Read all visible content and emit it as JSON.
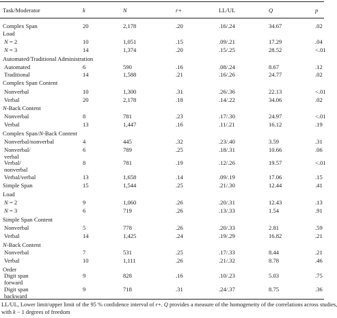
{
  "table": {
    "headers": [
      "Task/Moderator",
      "k",
      "N",
      "r+",
      "LL/UL",
      "Q",
      "p"
    ],
    "rows": [
      {
        "label": "Complex Span",
        "k": "20",
        "N": "2,178",
        "r": ".20",
        "llul": ".16/.24",
        "q": "34.67",
        "p": ".02",
        "type": "data"
      },
      {
        "label": "Load",
        "type": "section"
      },
      {
        "label": "N = 2",
        "k": "10",
        "N": "1,051",
        "r": ".15",
        "llul": ".09/.21",
        "q": "17.29",
        "p": ".04",
        "type": "data"
      },
      {
        "label": "N = 3",
        "k": "14",
        "N": "1,374",
        "r": ".20",
        "llul": ".15/.25",
        "q": "28.52",
        "p": "<.01",
        "type": "data"
      },
      {
        "label": "Automated/Traditional Administration",
        "type": "section"
      },
      {
        "label": "Automated",
        "k": "6",
        "N": "590",
        "r": ".16",
        "llul": ".08/.24",
        "q": "8.67",
        "p": ".12",
        "type": "data"
      },
      {
        "label": "Traditional",
        "k": "14",
        "N": "1,588",
        "r": ".21",
        "llul": ".16/.26",
        "q": "24.77",
        "p": ".02",
        "type": "data"
      },
      {
        "label": "Complex Span Content",
        "type": "section"
      },
      {
        "label": "Nonverbal",
        "k": "10",
        "N": "1,300",
        "r": ".31",
        "llul": ".26/.36",
        "q": "22.13",
        "p": "<.01",
        "type": "data"
      },
      {
        "label": "Verbal",
        "k": "20",
        "N": "2,178",
        "r": ".18",
        "llul": ".14/.22",
        "q": "34.06",
        "p": ".02",
        "type": "data"
      },
      {
        "label": "N-Back Content",
        "type": "section"
      },
      {
        "label": "Nonverbal",
        "k": "8",
        "N": "781",
        "r": ".23",
        "llul": ".17/.30",
        "q": "24.97",
        "p": "<.01",
        "type": "data"
      },
      {
        "label": "Verbal",
        "k": "13",
        "N": "1,447",
        "r": ".16",
        "llul": ".11/.21",
        "q": "16.12",
        "p": ".19",
        "type": "data"
      },
      {
        "label": "Complex Span/N-Back Content",
        "type": "section"
      },
      {
        "label": "Nonverbal/nonverbal",
        "k": "4",
        "N": "445",
        "r": ".32",
        "llul": ".23/.40",
        "q": "3.59",
        "p": ".31",
        "type": "data"
      },
      {
        "label": "Nonverbal/",
        "label2": "verbal",
        "k": "6",
        "N": "789",
        "r": ".25",
        "llul": ".18/.31",
        "q": "10.66",
        "p": ".06",
        "type": "data2"
      },
      {
        "label": "Verbal/",
        "label2": "nonverbal",
        "k": "8",
        "N": "781",
        "r": ".19",
        "llul": ".12/.26",
        "q": "19.57",
        "p": "<.01",
        "type": "data2"
      },
      {
        "label": "Verbal/verbal",
        "k": "13",
        "N": "1,658",
        "k2": "",
        "r": ".14",
        "llul": ".09/.19",
        "q": "17.06",
        "p": ".15",
        "type": "data"
      },
      {
        "label": "Simple Span",
        "k": "15",
        "N": "1,544",
        "r": ".25",
        "llul": ".21/.30",
        "q": "12.44",
        "p": ".41",
        "type": "data"
      },
      {
        "label": "Load",
        "type": "section"
      },
      {
        "label": "N = 2",
        "k": "9",
        "N": "1,060",
        "r": ".26",
        "llul": ".20/.31",
        "q": "12.43",
        "p": ".13",
        "type": "data"
      },
      {
        "label": "N = 3",
        "k": "6",
        "N": "719",
        "r": ".26",
        "llul": ".13/.33",
        "q": "1.54",
        "p": ".91",
        "type": "data"
      },
      {
        "label": "Simple Span Content",
        "type": "section"
      },
      {
        "label": "Nonverbal",
        "k": "5",
        "N": "778",
        "r": ".26",
        "llul": ".20/.33",
        "q": "2.81",
        "p": ".59",
        "type": "data"
      },
      {
        "label": "Verbal",
        "k": "14",
        "N": "1,425",
        "r": ".24",
        "llul": ".19/.29",
        "q": "16.82",
        "p": ".21",
        "type": "data"
      },
      {
        "label": "N-Back Content",
        "type": "section"
      },
      {
        "label": "Nonverbal",
        "k": "7",
        "N": "531",
        "r": ".25",
        "llul": ".17/.33",
        "q": "8.44",
        "p": ".21",
        "type": "data"
      },
      {
        "label": "Verbal",
        "k": "10",
        "N": "1,111",
        "r": ".26",
        "llul": ".21/.32",
        "q": "8.78",
        "p": ".46",
        "type": "data"
      },
      {
        "label": "Order",
        "type": "section"
      },
      {
        "label": "Digit span",
        "label2": "forward",
        "k": "9",
        "N": "828",
        "r": ".16",
        "llul": ".10/.23",
        "q": "5.03",
        "p": ".75",
        "type": "data2"
      },
      {
        "label": "Digit span",
        "label2": "backward",
        "k": "9",
        "N": "718",
        "r": ".31",
        "llul": ".24/.37",
        "q": "8.75",
        "p": ".36",
        "type": "data2"
      }
    ]
  },
  "footnote": {
    "line1": "LL/UL, Lower limit/upper limit of the 95 % confidence interval of r+. Q provides a measure of the homogeneity of the correlations across studies,",
    "line2": "with k − 1 degrees of freedom"
  }
}
